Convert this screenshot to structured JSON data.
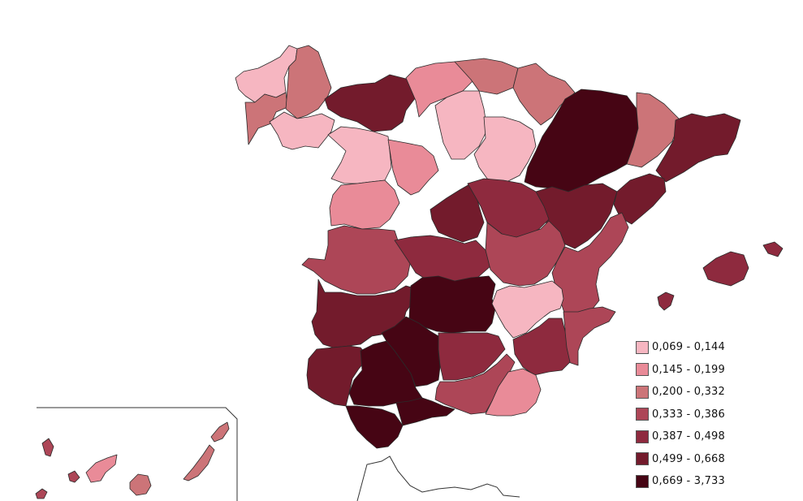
{
  "legend": {
    "items": [
      {
        "label": "0,069 - 0,144",
        "color": "#f6b6c1"
      },
      {
        "label": "0,145 - 0,199",
        "color": "#e98b98"
      },
      {
        "label": "0,200 - 0,332",
        "color": "#cc7478"
      },
      {
        "label": "0,333 - 0,386",
        "color": "#ad4657"
      },
      {
        "label": "0,387 - 0,498",
        "color": "#8e2a3e"
      },
      {
        "label": "0,499 - 0,668",
        "color": "#731b2c"
      },
      {
        "label": "0,669 - 3,733",
        "color": "#460514"
      }
    ]
  },
  "provinces": [
    {
      "name": "lugo-coruna",
      "class": 0
    },
    {
      "name": "pontevedra-orense",
      "class": 2
    },
    {
      "name": "asturias",
      "class": 2
    },
    {
      "name": "cantabria-leon-north",
      "class": 5
    },
    {
      "name": "cantabria",
      "class": 1
    },
    {
      "name": "basque",
      "class": 2
    },
    {
      "name": "navarra",
      "class": 2
    },
    {
      "name": "burgos",
      "class": 0
    },
    {
      "name": "zaragoza-huesca",
      "class": 6
    },
    {
      "name": "lleida",
      "class": 2
    },
    {
      "name": "girona-barcelona",
      "class": 5
    },
    {
      "name": "leon",
      "class": 0
    },
    {
      "name": "zamora",
      "class": 0
    },
    {
      "name": "salamanca",
      "class": 1
    },
    {
      "name": "valladolid",
      "class": 1
    },
    {
      "name": "soria",
      "class": 0
    },
    {
      "name": "teruel",
      "class": 5
    },
    {
      "name": "tarragona",
      "class": 5
    },
    {
      "name": "madrid",
      "class": 5
    },
    {
      "name": "guadalajara",
      "class": 4
    },
    {
      "name": "caceres",
      "class": 3
    },
    {
      "name": "toledo",
      "class": 4
    },
    {
      "name": "cuenca",
      "class": 3
    },
    {
      "name": "valencia",
      "class": 3
    },
    {
      "name": "badajoz",
      "class": 5
    },
    {
      "name": "ciudad-real",
      "class": 6
    },
    {
      "name": "albacete",
      "class": 0
    },
    {
      "name": "alicante",
      "class": 3
    },
    {
      "name": "huelva",
      "class": 5
    },
    {
      "name": "sevilla",
      "class": 6
    },
    {
      "name": "cordoba",
      "class": 6
    },
    {
      "name": "jaen",
      "class": 4
    },
    {
      "name": "murcia",
      "class": 4
    },
    {
      "name": "cadiz",
      "class": 6
    },
    {
      "name": "malaga",
      "class": 6
    },
    {
      "name": "granada",
      "class": 3
    },
    {
      "name": "almeria",
      "class": 1
    },
    {
      "name": "mallorca",
      "class": 4
    },
    {
      "name": "menorca",
      "class": 4
    },
    {
      "name": "ibiza",
      "class": 4
    },
    {
      "name": "la-palma",
      "class": 3
    },
    {
      "name": "el-hierro",
      "class": 3
    },
    {
      "name": "la-gomera",
      "class": 3
    },
    {
      "name": "tenerife",
      "class": 1
    },
    {
      "name": "gran-canaria",
      "class": 2
    },
    {
      "name": "fuerteventura",
      "class": 2
    },
    {
      "name": "lanzarote",
      "class": 2
    }
  ]
}
